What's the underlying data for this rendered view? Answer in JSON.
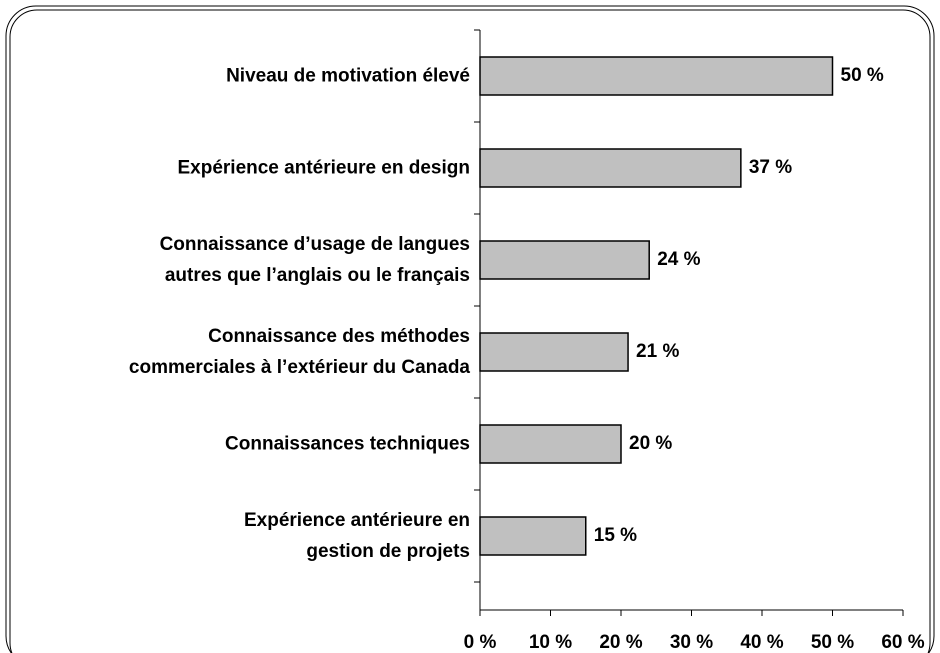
{
  "chart_data": {
    "type": "barh",
    "categories": [
      "Niveau de motivation élevé",
      "Expérience antérieure en design",
      "Connaissance d’usage de langues\nautres que l’anglais ou le français",
      "Connaissance des méthodes\ncommerciales à l’extérieur du Canada",
      "Connaissances techniques",
      "Expérience antérieure en\ngestion de projets"
    ],
    "values": [
      50,
      37,
      24,
      21,
      20,
      15
    ],
    "value_labels": [
      "50 %",
      "37 %",
      "24 %",
      "21 %",
      "20 %",
      "15 %"
    ],
    "color": "#c0c0c0",
    "xlim": [
      0,
      60
    ],
    "xticks": [
      {
        "value": 0,
        "label": "0 %"
      },
      {
        "value": 10,
        "label": "10 %"
      },
      {
        "value": 20,
        "label": "20 %"
      },
      {
        "value": 30,
        "label": "30 %"
      },
      {
        "value": 40,
        "label": "40 %"
      },
      {
        "value": 50,
        "label": "50 %"
      },
      {
        "value": 60,
        "label": "60 %"
      }
    ]
  }
}
